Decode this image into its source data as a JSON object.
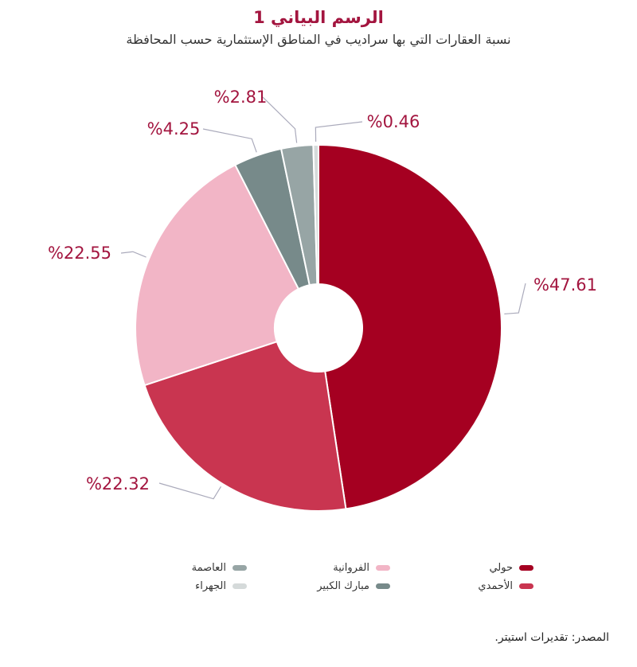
{
  "chart_data": {
    "type": "pie",
    "title": "الرسم البياني 1",
    "subtitle": "نسبة العقارات التي بها سراديب في المناطق الإستثمارية حسب المحافظة",
    "series": [
      {
        "name": "حولي",
        "value": 47.61,
        "label": "%47.61",
        "color": "#a50021"
      },
      {
        "name": "الأحمدي",
        "value": 22.32,
        "label": "%22.32",
        "color": "#c93550"
      },
      {
        "name": "الفروانية",
        "value": 22.55,
        "label": "%22.55",
        "color": "#f2b5c6"
      },
      {
        "name": "مبارك الكبير",
        "value": 4.25,
        "label": "%4.25",
        "color": "#778a8a"
      },
      {
        "name": "العاصمة",
        "value": 2.81,
        "label": "%2.81",
        "color": "#97a5a5"
      },
      {
        "name": "الجهراء",
        "value": 0.46,
        "label": "%0.46",
        "color": "#d5dada"
      }
    ],
    "legend_order": [
      0,
      2,
      4,
      1,
      3,
      5
    ],
    "legend_position": "bottom",
    "source": "المصدر: تقديرات استيتر.",
    "label_color": "#a3153f"
  }
}
